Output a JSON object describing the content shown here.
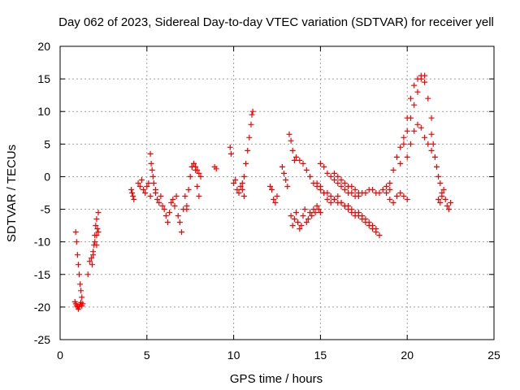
{
  "chart_data": {
    "type": "scatter",
    "title": "Day 062 of 2023, Sidereal Day-to-day VTEC variation (SDTVAR) for receiver yell",
    "xlabel": "GPS time / hours",
    "ylabel": "SDTVAR / TECUs",
    "xlim": [
      0,
      25
    ],
    "ylim": [
      -25,
      20
    ],
    "xticks": [
      0,
      5,
      10,
      15,
      20,
      25
    ],
    "yticks": [
      -25,
      -20,
      -15,
      -10,
      -5,
      0,
      5,
      10,
      15,
      20
    ],
    "grid": true,
    "marker": "+",
    "color": "#ff0000",
    "series": [
      {
        "name": "SDTVAR",
        "segments": [
          {
            "x": [
              0.85,
              0.9,
              0.95,
              1.0,
              1.05,
              1.1,
              1.15,
              1.2,
              1.25
            ],
            "y": [
              -19.2,
              -19.5,
              -19.8,
              -20.0,
              -20.3,
              -20.0,
              -19.6,
              -19.3,
              -19.8
            ]
          },
          {
            "x": [
              0.9,
              0.95,
              1.0,
              1.05,
              1.1,
              1.15,
              1.2,
              1.25,
              1.3
            ],
            "y": [
              -8.5,
              -10.0,
              -12.0,
              -13.5,
              -15.0,
              -16.5,
              -17.5,
              -18.5,
              -19.5
            ]
          },
          {
            "x": [
              1.6,
              1.7,
              1.8,
              1.9,
              2.0,
              2.1,
              2.2
            ],
            "y": [
              -15.0,
              -13.0,
              -12.5,
              -11.5,
              -10.0,
              -9.0,
              -8.5
            ]
          },
          {
            "x": [
              1.85,
              1.9,
              1.95,
              2.0,
              2.05,
              2.1
            ],
            "y": [
              -13.5,
              -12.0,
              -10.5,
              -9.0,
              -7.5,
              -6.5
            ]
          },
          {
            "x": [
              2.1,
              2.15,
              2.2
            ],
            "y": [
              -10.5,
              -8.0,
              -5.5
            ]
          },
          {
            "x": [
              4.1,
              4.15,
              4.2,
              4.25
            ],
            "y": [
              -2.0,
              -2.5,
              -3.0,
              -3.5
            ]
          },
          {
            "x": [
              4.5,
              4.6,
              4.7,
              4.8,
              4.9,
              5.0,
              5.1,
              5.2
            ],
            "y": [
              -1.0,
              -1.5,
              -0.5,
              -2.0,
              -2.5,
              -1.5,
              -1.0,
              -3.0
            ]
          },
          {
            "x": [
              5.2,
              5.25,
              5.3,
              5.35,
              5.4,
              5.5
            ],
            "y": [
              3.5,
              2.0,
              1.0,
              0.0,
              -1.0,
              -2.0
            ]
          },
          {
            "x": [
              5.5,
              5.6,
              5.7,
              5.8,
              5.9,
              6.0,
              6.1,
              6.2,
              6.3,
              6.4
            ],
            "y": [
              -2.5,
              -3.5,
              -4.0,
              -3.0,
              -4.5,
              -5.0,
              -6.0,
              -7.0,
              -5.5,
              -4.0
            ]
          },
          {
            "x": [
              6.5,
              6.6,
              6.7,
              6.8,
              6.9,
              7.0,
              7.1,
              7.2,
              7.3
            ],
            "y": [
              -3.5,
              -4.5,
              -3.0,
              -6.0,
              -7.0,
              -8.5,
              -5.0,
              -3.0,
              -4.5
            ]
          },
          {
            "x": [
              7.3,
              7.4,
              7.5,
              7.6,
              7.7,
              7.8,
              7.9,
              8.0
            ],
            "y": [
              -5.0,
              -2.0,
              0.0,
              1.5,
              2.0,
              1.0,
              -1.5,
              -3.0
            ]
          },
          {
            "x": [
              7.6,
              7.7,
              7.8,
              7.9,
              8.0,
              8.1
            ],
            "y": [
              1.5,
              2.0,
              1.5,
              1.0,
              0.5,
              0.0
            ]
          },
          {
            "x": [
              8.9,
              9.0
            ],
            "y": [
              1.5,
              1.2
            ]
          },
          {
            "x": [
              9.8,
              9.85
            ],
            "y": [
              4.5,
              3.5
            ]
          },
          {
            "x": [
              10.0,
              10.1,
              10.2,
              10.3,
              10.4,
              10.5,
              10.6
            ],
            "y": [
              -1.0,
              -0.5,
              -2.0,
              -2.5,
              -1.5,
              -2.0,
              -3.0
            ]
          },
          {
            "x": [
              10.5,
              10.6,
              10.7,
              10.8,
              10.9,
              11.0,
              11.05,
              11.1
            ],
            "y": [
              -1.0,
              0.0,
              2.0,
              4.0,
              6.0,
              8.0,
              9.5,
              10.0
            ]
          },
          {
            "x": [
              12.1,
              12.2,
              12.3,
              12.4,
              12.5
            ],
            "y": [
              -1.5,
              -2.0,
              -3.5,
              -4.0,
              -3.0
            ]
          },
          {
            "x": [
              12.8,
              12.9,
              13.0,
              13.1
            ],
            "y": [
              1.5,
              0.5,
              -0.5,
              -1.5
            ]
          },
          {
            "x": [
              13.2,
              13.3,
              13.4,
              13.5
            ],
            "y": [
              6.5,
              5.5,
              4.0,
              2.5
            ]
          },
          {
            "x": [
              13.3,
              13.4,
              13.5,
              13.6,
              13.7,
              13.8,
              13.9,
              14.0,
              14.1,
              14.2,
              14.3,
              14.4,
              14.5,
              14.6,
              14.7,
              14.8,
              14.9,
              15.0
            ],
            "y": [
              -6.0,
              -7.5,
              -6.5,
              -5.5,
              -7.0,
              -8.0,
              -7.5,
              -6.0,
              -5.0,
              -7.0,
              -6.5,
              -5.5,
              -6.0,
              -5.0,
              -5.5,
              -4.5,
              -5.0,
              -5.5
            ]
          },
          {
            "x": [
              13.6,
              13.8,
              14.0,
              14.2,
              14.4,
              14.6,
              14.8,
              15.0,
              15.2,
              15.4,
              15.6,
              15.8,
              16.0,
              16.2,
              16.4,
              16.6,
              16.8,
              17.0,
              17.2,
              17.4,
              17.6,
              17.8,
              18.0,
              18.2
            ],
            "y": [
              3.0,
              2.5,
              2.0,
              1.0,
              0.0,
              -1.0,
              -1.5,
              -2.0,
              -2.5,
              -2.5,
              -3.0,
              -3.5,
              -4.0,
              -4.0,
              -4.5,
              -4.5,
              -5.0,
              -5.5,
              -5.5,
              -6.0,
              -6.5,
              -7.0,
              -7.5,
              -8.0
            ]
          },
          {
            "x": [
              14.8,
              15.0,
              15.2,
              15.4,
              15.6,
              15.8,
              16.0,
              16.2,
              16.4,
              16.6,
              16.8,
              17.0,
              17.2,
              17.4,
              17.6,
              17.8,
              18.0,
              18.2,
              18.4
            ],
            "y": [
              -1.0,
              -1.5,
              -2.5,
              -3.5,
              -4.0,
              -3.5,
              -3.0,
              -4.0,
              -4.5,
              -5.0,
              -5.5,
              -6.0,
              -6.0,
              -6.5,
              -7.0,
              -7.5,
              -8.0,
              -8.5,
              -9.0
            ]
          },
          {
            "x": [
              15.0,
              15.2,
              15.4,
              15.6,
              15.8,
              16.0,
              16.2,
              16.4,
              16.6,
              16.8,
              17.0,
              17.2,
              17.4,
              17.6,
              17.8,
              18.0,
              18.2,
              18.4,
              18.6,
              18.8,
              19.0
            ],
            "y": [
              2.0,
              1.5,
              0.5,
              0.0,
              -0.5,
              -1.0,
              -1.5,
              -2.0,
              -2.5,
              -2.5,
              -3.0,
              -3.0,
              -2.5,
              -2.5,
              -2.0,
              -2.0,
              -2.5,
              -2.5,
              -2.0,
              -1.5,
              -2.0
            ]
          },
          {
            "x": [
              15.8,
              16.0,
              16.2,
              16.4,
              16.6,
              16.8,
              17.0,
              17.2
            ],
            "y": [
              0.5,
              0.0,
              -0.5,
              -1.0,
              -1.5,
              -1.5,
              -2.0,
              -2.5
            ]
          },
          {
            "x": [
              18.8,
              19.0,
              19.2,
              19.4,
              19.6,
              19.8,
              20.0
            ],
            "y": [
              -2.5,
              -3.5,
              -4.0,
              -3.0,
              -2.5,
              -3.0,
              -3.5
            ]
          },
          {
            "x": [
              19.0,
              19.2,
              19.4,
              19.6,
              19.8,
              20.0,
              20.2,
              20.4,
              20.6,
              20.8,
              21.0
            ],
            "y": [
              -1.0,
              1.0,
              3.0,
              4.5,
              6.0,
              7.0,
              9.0,
              11.0,
              13.0,
              15.0,
              15.5
            ]
          },
          {
            "x": [
              19.6,
              19.8,
              20.0,
              20.2,
              20.4,
              20.6,
              20.8,
              21.0,
              21.2,
              21.4
            ],
            "y": [
              2.0,
              5.0,
              9.0,
              12.0,
              14.0,
              15.0,
              15.5,
              14.5,
              12.0,
              9.0
            ]
          },
          {
            "x": [
              20.0,
              20.2,
              20.4,
              20.6,
              20.8,
              21.0,
              21.2,
              21.4
            ],
            "y": [
              3.0,
              5.0,
              7.0,
              8.0,
              7.5,
              6.0,
              5.0,
              4.0
            ]
          },
          {
            "x": [
              21.4,
              21.5,
              21.6,
              21.7,
              21.8,
              21.9,
              22.0
            ],
            "y": [
              6.5,
              5.0,
              3.0,
              1.5,
              0.0,
              -1.0,
              -2.5
            ]
          },
          {
            "x": [
              21.8,
              21.9,
              22.0,
              22.1,
              22.2,
              22.3,
              22.4,
              22.5
            ],
            "y": [
              -3.5,
              -4.0,
              -3.0,
              -2.0,
              -3.5,
              -4.5,
              -5.0,
              -4.0
            ]
          }
        ]
      }
    ]
  }
}
